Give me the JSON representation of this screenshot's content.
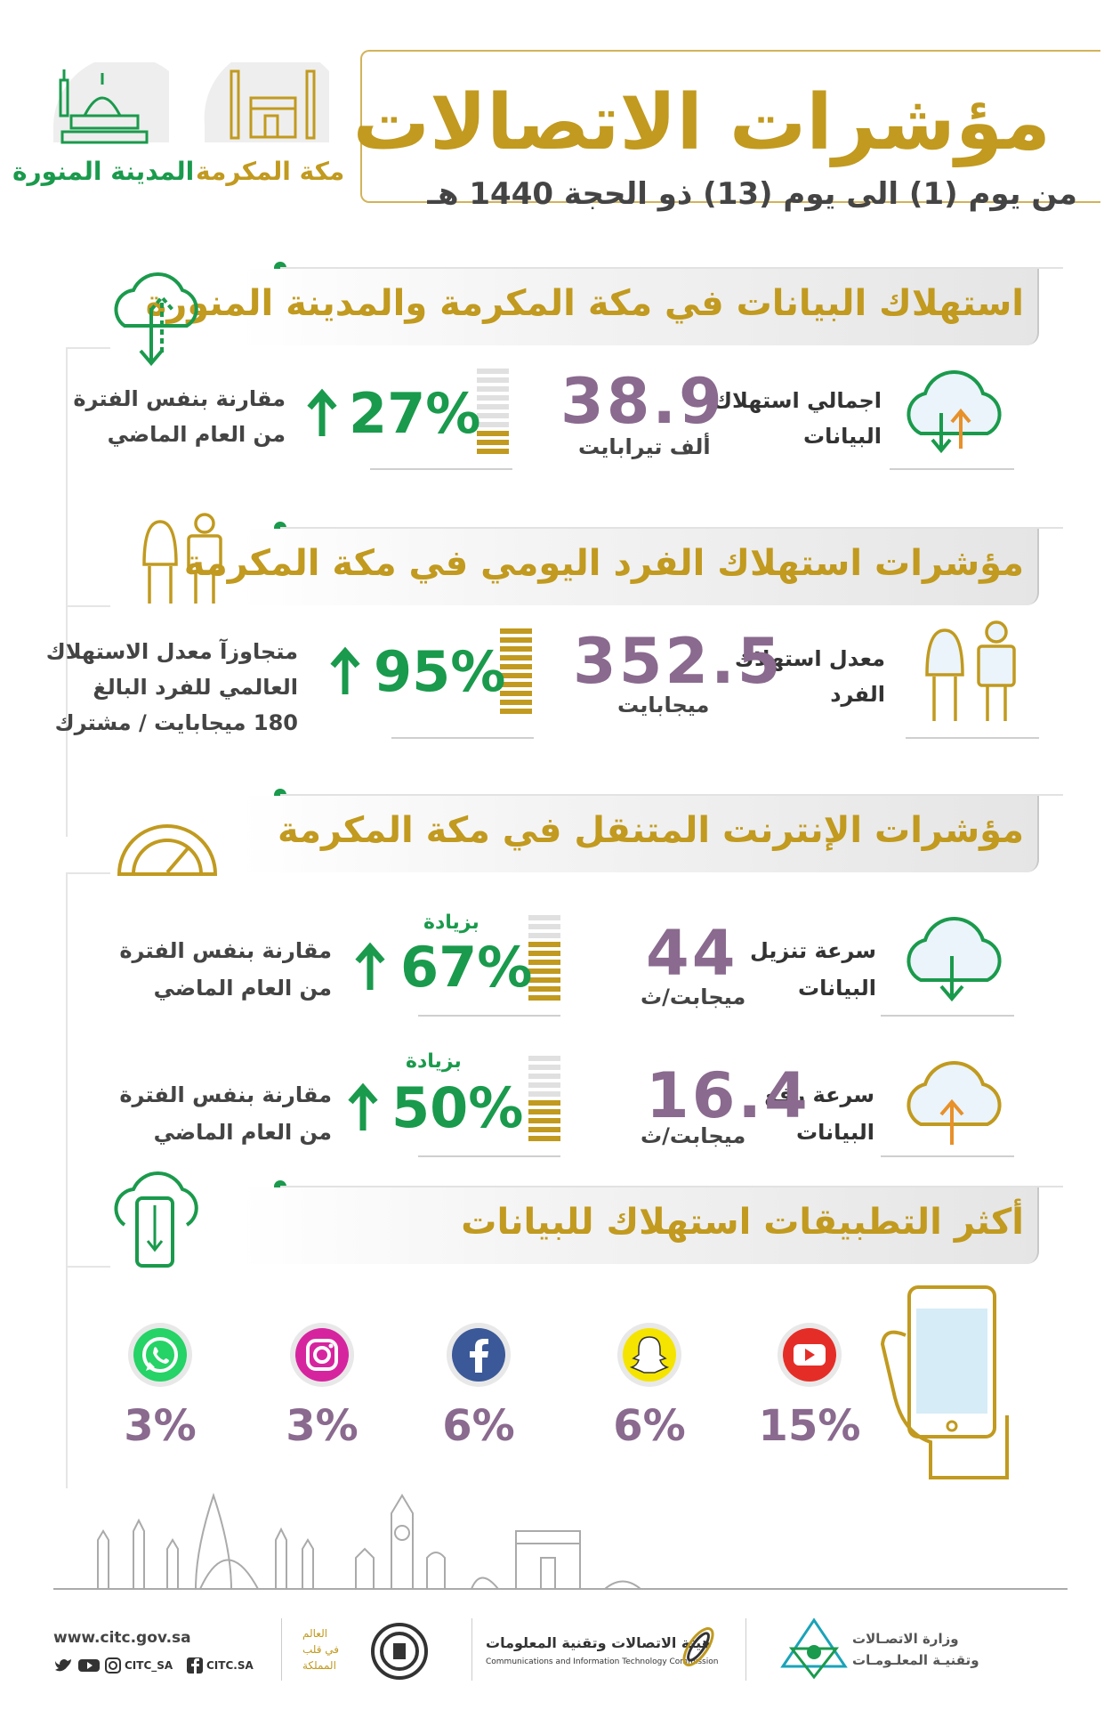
{
  "header": {
    "title": "مؤشرات الاتصالات",
    "subtitle": "من يوم (1) الى يوم (13) ذو الحجة 1440 هـ",
    "city_makkah": "مكة المكرمة",
    "city_madinah": "المدينة المنورة"
  },
  "section1": {
    "title": "استهلاك البيانات في مكة المكرمة والمدينة المنورة",
    "label_line1": "اجمالي استهلاك",
    "label_line2": "البيانات",
    "value": "38.9",
    "unit": "ألف تيرابايت",
    "percent": "27%",
    "compare_line1": "مقارنة بنفس الفترة",
    "compare_line2": "من العام الماضي",
    "level_fraction": 0.27
  },
  "section2": {
    "title": "مؤشرات استهلاك الفرد اليومي في مكة المكرمة",
    "label_line1": "معدل استهلاك",
    "label_line2": "الفرد",
    "value": "352.5",
    "unit": "ميجابايت",
    "percent": "95%",
    "compare_line1": "متجاوزآ معدل الاستهلاك",
    "compare_line2": "العالمي للفرد البالغ",
    "compare_line3": "180 ميجابايت / مشترك",
    "level_fraction": 0.95
  },
  "section3": {
    "title": "مؤشرات الإنترنت المتنقل في مكة المكرمة",
    "download": {
      "label_line1": "سرعة تنزيل",
      "label_line2": "البيانات",
      "value": "44",
      "unit": "ميجابت/ث",
      "increase": "بزيادة",
      "percent": "67%",
      "compare_line1": "مقارنة بنفس الفترة",
      "compare_line2": "من العام الماضي",
      "level_fraction": 0.67
    },
    "upload": {
      "label_line1": "سرعة رفع",
      "label_line2": "البيانات",
      "value": "16.4",
      "unit": "ميجابت/ث",
      "increase": "بزيادة",
      "percent": "50%",
      "compare_line1": "مقارنة بنفس الفترة",
      "compare_line2": "من العام الماضي",
      "level_fraction": 0.5
    }
  },
  "section4": {
    "title": "أكثر التطبيقات استهلاك للبيانات",
    "apps": [
      {
        "icon": "youtube-icon",
        "percent": "15%",
        "color": "#e52d27"
      },
      {
        "icon": "snapchat-icon",
        "percent": "6%",
        "color": "#f5e400"
      },
      {
        "icon": "facebook-icon",
        "percent": "6%",
        "color": "#3b5998"
      },
      {
        "icon": "instagram-icon",
        "percent": "3%",
        "color": "#d6249f"
      },
      {
        "icon": "whatsapp-icon",
        "percent": "3%",
        "color": "#25d366"
      }
    ]
  },
  "footer": {
    "url": "www.citc.gov.sa",
    "handle": "CITC_SA",
    "handle_fb": "CITC.SA",
    "citc_ar": "هيئة الاتصالات وتقنية المعلومات",
    "citc_en": "Communications and Information Technology Commission",
    "ministry_line1": "وزارة الاتصـالات",
    "ministry_line2": "وتقنيـة المعلـومـات",
    "kingdom_line1": "العالم",
    "kingdom_line2": "في قلب",
    "kingdom_line3": "المملكة"
  },
  "colors": {
    "gold": "#c19a1f",
    "green": "#1a9a4c",
    "purple": "#8a6a8e"
  }
}
